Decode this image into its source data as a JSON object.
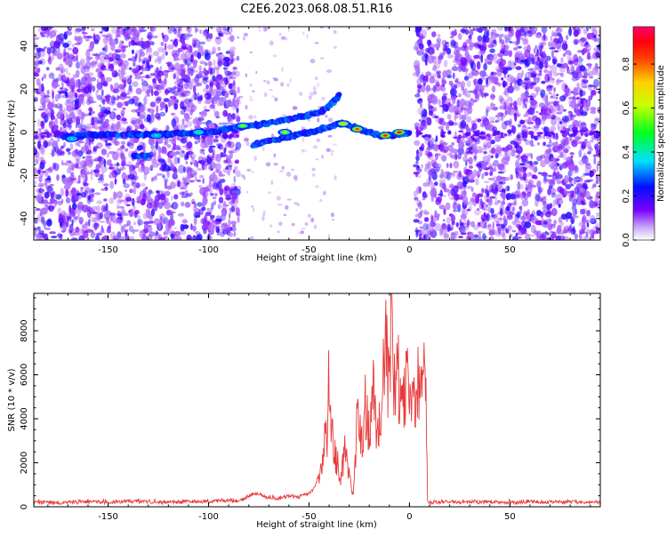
{
  "figure": {
    "title": "C2E6.2023.068.08.51.R16"
  },
  "colors": {
    "snr_line": "#e83a3a",
    "axis": "#000000"
  },
  "colorbar": {
    "label": "Normalized spectral amplitude",
    "ticks": [
      "0.0",
      "0.2",
      "0.4",
      "0.6",
      "0.8"
    ],
    "tick_values": [
      0.0,
      0.2,
      0.4,
      0.6,
      0.8
    ],
    "range": [
      0,
      0.97
    ],
    "colormap": "rainbow (purple → blue → cyan → green → yellow → orange → red → magenta)"
  },
  "chart_data": [
    {
      "type": "heatmap",
      "title": "",
      "xlabel": "Height of straight line (km)",
      "ylabel": "Frequency (Hz)",
      "xlim": [
        -187,
        95
      ],
      "ylim": [
        -50,
        49
      ],
      "x_ticks": [
        -150,
        -100,
        -50,
        0,
        50
      ],
      "x_tick_labels": [
        "-150",
        "-100",
        "-50",
        "0",
        "50"
      ],
      "y_ticks": [
        -40,
        -20,
        0,
        20,
        40
      ],
      "y_tick_labels": [
        "-40",
        "-20",
        "0",
        "20",
        "40"
      ],
      "noise_regions": [
        [
          -187,
          -85
        ],
        [
          3,
          95
        ]
      ],
      "quiet_region": [
        -85,
        3
      ],
      "ridges": [
        {
          "name": "upper",
          "x": [
            -172,
            -150,
            -130,
            -110,
            -95,
            -85,
            -75,
            -60,
            -45,
            -40,
            -35
          ],
          "y": [
            -2,
            -1,
            -1,
            -0.5,
            0.5,
            2.5,
            3.5,
            6,
            9,
            12,
            17
          ]
        },
        {
          "name": "lower",
          "x": [
            -78,
            -70,
            -60,
            -50,
            -42,
            -35,
            -30,
            -25,
            -15,
            -8,
            0
          ],
          "y": [
            -6,
            -4,
            -2,
            0,
            2,
            4,
            3.5,
            1.5,
            -1.5,
            -1.5,
            0
          ]
        },
        {
          "name": "blip",
          "x": [
            -137,
            -130
          ],
          "y": [
            -11,
            -11
          ]
        }
      ],
      "hotspots": [
        {
          "x": -5,
          "y": 0,
          "amplitude": 0.95
        },
        {
          "x": -12,
          "y": -1.5,
          "amplitude": 0.9
        },
        {
          "x": -26,
          "y": 1.5,
          "amplitude": 0.85
        },
        {
          "x": -33,
          "y": 4,
          "amplitude": 0.75
        },
        {
          "x": -62,
          "y": 0,
          "amplitude": 0.65
        },
        {
          "x": -83,
          "y": 3,
          "amplitude": 0.6
        },
        {
          "x": -105,
          "y": 0,
          "amplitude": 0.45
        },
        {
          "x": -126,
          "y": -1.5,
          "amplitude": 0.4
        },
        {
          "x": -168,
          "y": -3,
          "amplitude": 0.4
        }
      ]
    },
    {
      "type": "line",
      "title": "",
      "xlabel": "Height of straight line (km)",
      "ylabel": "SNR (10 * v/v)",
      "xlim": [
        -187,
        95
      ],
      "ylim": [
        0,
        9700
      ],
      "x_ticks": [
        -150,
        -100,
        -50,
        0,
        50
      ],
      "x_tick_labels": [
        "-150",
        "-100",
        "-50",
        "0",
        "50"
      ],
      "y_ticks": [
        0,
        2000,
        4000,
        6000,
        8000
      ],
      "y_tick_labels": [
        "0",
        "2000",
        "4000",
        "6000",
        "8000"
      ],
      "series": [
        {
          "x": [
            -187,
            -175,
            -160,
            -150,
            -140,
            -130,
            -120,
            -110,
            -100,
            -90,
            -85,
            -80,
            -75,
            -70,
            -65,
            -60,
            -55,
            -50,
            -47,
            -45,
            -43,
            -41,
            -40,
            -38,
            -36,
            -34,
            -32,
            -30,
            -28,
            -26,
            -24,
            -22,
            -20,
            -18,
            -16,
            -14,
            -12,
            -10,
            -9,
            -8,
            -6,
            -4,
            -2,
            0,
            2,
            4,
            6,
            7,
            8,
            9,
            10,
            20,
            30,
            40,
            50,
            60,
            70,
            80,
            90,
            95
          ],
          "y": [
            200,
            180,
            220,
            200,
            250,
            230,
            200,
            230,
            250,
            280,
            250,
            500,
            600,
            400,
            350,
            500,
            450,
            600,
            900,
            1500,
            2500,
            3400,
            5900,
            2600,
            2000,
            1200,
            2800,
            1400,
            600,
            3900,
            2900,
            4600,
            3400,
            5400,
            3400,
            3900,
            8100,
            4900,
            9700,
            5300,
            6100,
            5000,
            5700,
            6300,
            4900,
            5900,
            5400,
            6700,
            5900,
            250,
            200,
            230,
            210,
            220,
            200,
            230,
            210,
            220,
            200,
            200
          ]
        }
      ]
    }
  ]
}
